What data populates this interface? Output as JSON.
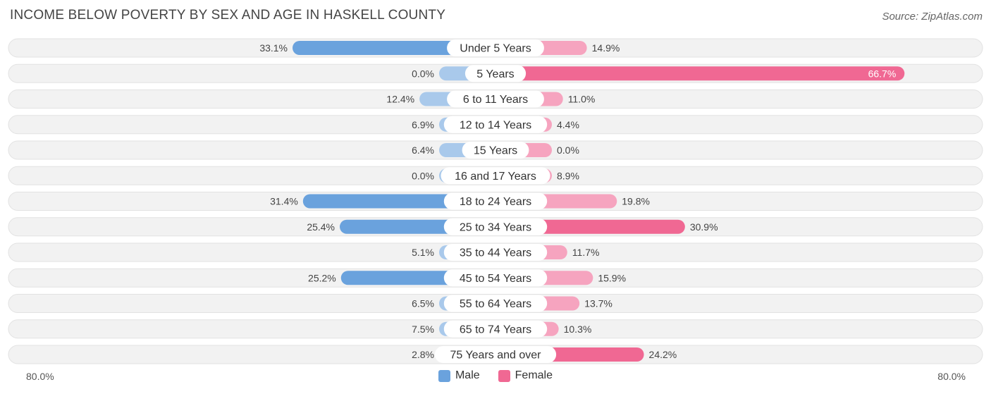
{
  "title": "INCOME BELOW POVERTY BY SEX AND AGE IN HASKELL COUNTY",
  "source": "Source: ZipAtlas.com",
  "colors": {
    "male_strong": "#6aa2dd",
    "male_light": "#a9c9eb",
    "female_strong": "#f06893",
    "female_light": "#f6a4bf",
    "row_bg": "#f2f2f2"
  },
  "legend": {
    "male_label": "Male",
    "female_label": "Female"
  },
  "axis": {
    "left_label": "80.0%",
    "right_label": "80.0%"
  },
  "chart_data": {
    "type": "bar",
    "orientation": "horizontal-diverging",
    "categories": [
      "Under 5 Years",
      "5 Years",
      "6 to 11 Years",
      "12 to 14 Years",
      "15 Years",
      "16 and 17 Years",
      "18 to 24 Years",
      "25 to 34 Years",
      "35 to 44 Years",
      "45 to 54 Years",
      "55 to 64 Years",
      "65 to 74 Years",
      "75 Years and over"
    ],
    "series": [
      {
        "name": "Male",
        "values": [
          33.1,
          0.0,
          12.4,
          6.9,
          6.4,
          0.0,
          31.4,
          25.4,
          5.1,
          25.2,
          6.5,
          7.5,
          2.8
        ],
        "labels": [
          "33.1%",
          "0.0%",
          "12.4%",
          "6.9%",
          "6.4%",
          "0.0%",
          "31.4%",
          "25.4%",
          "5.1%",
          "25.2%",
          "6.5%",
          "7.5%",
          "2.8%"
        ]
      },
      {
        "name": "Female",
        "values": [
          14.9,
          66.7,
          11.0,
          4.4,
          0.0,
          8.9,
          19.8,
          30.9,
          11.7,
          15.9,
          13.7,
          10.3,
          24.2
        ],
        "labels": [
          "14.9%",
          "66.7%",
          "11.0%",
          "4.4%",
          "0.0%",
          "8.9%",
          "19.8%",
          "30.9%",
          "11.7%",
          "15.9%",
          "13.7%",
          "10.3%",
          "24.2%"
        ]
      }
    ],
    "xlim": [
      -80,
      80
    ],
    "grid": false,
    "legend_position": "bottom-center"
  }
}
